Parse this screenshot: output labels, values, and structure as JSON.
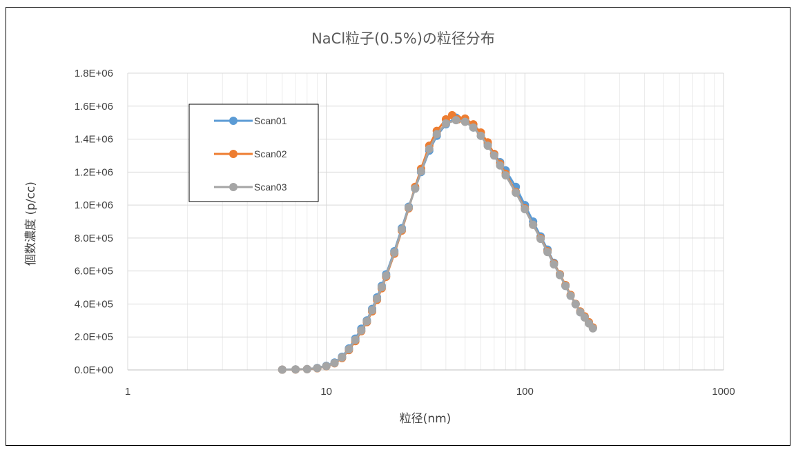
{
  "chart_data": {
    "type": "line",
    "title": "NaCl粒子(0.5%)の粒径分布",
    "xlabel": "粒径(nm)",
    "ylabel": "個数濃度 (p/cc)",
    "xscale": "log",
    "xlim": [
      1,
      1000
    ],
    "ylim": [
      0,
      1800000
    ],
    "x_ticks": [
      "1",
      "10",
      "100",
      "1000"
    ],
    "y_ticks": [
      "0.0E+00",
      "2.0E+05",
      "4.0E+05",
      "6.0E+05",
      "8.0E+05",
      "1.0E+06",
      "1.2E+06",
      "1.4E+06",
      "1.6E+06",
      "1.8E+06"
    ],
    "grid": true,
    "legend": "top-left",
    "series": [
      {
        "name": "Scan01",
        "color": "#5B9BD5",
        "x": [
          6,
          7,
          8,
          9,
          10,
          11,
          12,
          13,
          14,
          15,
          16,
          17,
          18,
          19,
          20,
          22,
          24,
          26,
          28,
          30,
          33,
          36,
          40,
          45,
          50,
          55,
          60,
          65,
          70,
          75,
          80,
          90,
          100,
          110,
          120,
          130,
          140,
          150,
          160,
          170,
          180,
          190,
          200,
          210,
          220
        ],
        "y": [
          2000,
          3000,
          5000,
          12000,
          25000,
          45000,
          80000,
          130000,
          190000,
          250000,
          300000,
          370000,
          440000,
          510000,
          580000,
          720000,
          860000,
          990000,
          1100000,
          1200000,
          1330000,
          1420000,
          1490000,
          1530000,
          1510000,
          1470000,
          1420000,
          1370000,
          1310000,
          1260000,
          1210000,
          1110000,
          1000000,
          900000,
          810000,
          730000,
          650000,
          580000,
          510000,
          450000,
          400000,
          350000,
          320000,
          285000,
          255000
        ]
      },
      {
        "name": "Scan02",
        "color": "#ED7D31",
        "x": [
          6,
          7,
          8,
          9,
          10,
          11,
          12,
          13,
          14,
          15,
          16,
          17,
          18,
          19,
          20,
          22,
          24,
          26,
          28,
          30,
          33,
          36,
          40,
          43,
          46,
          50,
          55,
          60,
          65,
          70,
          75,
          80,
          90,
          100,
          110,
          120,
          130,
          140,
          150,
          160,
          170,
          180,
          190,
          200,
          210,
          220
        ],
        "y": [
          1500,
          2500,
          4500,
          10000,
          22000,
          40000,
          72000,
          120000,
          175000,
          235000,
          290000,
          355000,
          425000,
          495000,
          565000,
          705000,
          845000,
          980000,
          1110000,
          1220000,
          1360000,
          1450000,
          1520000,
          1545000,
          1520000,
          1525000,
          1490000,
          1440000,
          1380000,
          1310000,
          1250000,
          1190000,
          1080000,
          980000,
          880000,
          800000,
          720000,
          645000,
          580000,
          515000,
          455000,
          400000,
          355000,
          325000,
          290000,
          258000
        ]
      },
      {
        "name": "Scan03",
        "color": "#A5A5A5",
        "x": [
          6,
          7,
          8,
          9,
          10,
          11,
          12,
          13,
          14,
          15,
          16,
          17,
          18,
          19,
          20,
          22,
          24,
          26,
          28,
          30,
          33,
          36,
          40,
          45,
          50,
          55,
          60,
          65,
          70,
          75,
          80,
          90,
          100,
          110,
          120,
          130,
          140,
          150,
          160,
          170,
          180,
          190,
          200,
          210,
          220
        ],
        "y": [
          1800,
          2800,
          4800,
          11000,
          23000,
          42000,
          76000,
          125000,
          182000,
          240000,
          295000,
          362000,
          432000,
          502000,
          572000,
          712000,
          852000,
          985000,
          1100000,
          1205000,
          1340000,
          1430000,
          1495000,
          1515000,
          1505000,
          1470000,
          1420000,
          1360000,
          1300000,
          1240000,
          1180000,
          1075000,
          975000,
          880000,
          795000,
          715000,
          640000,
          575000,
          510000,
          450000,
          398000,
          350000,
          318000,
          282000,
          252000
        ]
      }
    ]
  }
}
